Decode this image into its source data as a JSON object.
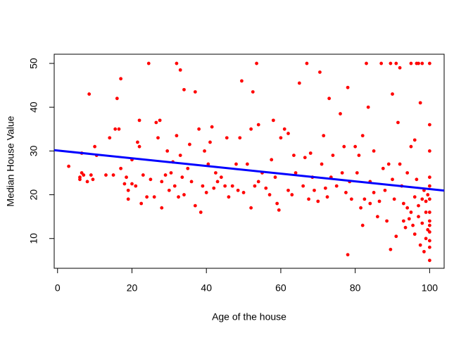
{
  "chart_data": {
    "type": "scatter",
    "xlabel": "Age of the house",
    "ylabel": "Median House Value",
    "x": [
      3,
      6,
      6,
      6.5,
      6.5,
      7,
      8,
      8.5,
      9,
      9.5,
      10,
      10.5,
      13,
      14,
      15,
      15.5,
      16,
      16.5,
      17,
      17,
      18,
      18.5,
      19,
      19,
      20,
      20,
      21,
      21.5,
      22,
      22,
      22.5,
      23,
      24,
      24.5,
      25,
      26,
      26.5,
      27,
      27.5,
      28,
      28,
      29,
      29.5,
      30,
      30.5,
      31,
      31.5,
      32,
      32,
      32.5,
      33,
      33,
      33.5,
      34,
      34,
      35,
      35.5,
      36,
      37,
      37,
      38,
      38.5,
      39,
      39.5,
      40,
      40.5,
      41,
      41.5,
      42,
      42.5,
      43,
      44,
      45,
      45.5,
      46,
      47,
      48,
      48.5,
      49,
      49.5,
      50,
      51,
      52,
      52,
      52.5,
      53,
      53.5,
      54,
      54,
      55,
      56,
      57,
      57.5,
      58,
      58.5,
      59,
      59.5,
      60,
      61,
      62,
      62,
      63,
      63.5,
      64,
      65,
      66,
      66.5,
      67,
      67.5,
      68,
      68.5,
      69,
      70,
      70.5,
      71,
      71.5,
      72,
      72.5,
      73,
      73.5,
      74,
      75,
      76,
      76.5,
      77,
      77.5,
      78,
      78,
      78.5,
      79,
      80,
      80.5,
      81,
      81.5,
      82,
      82,
      82.5,
      83,
      83.5,
      84,
      84,
      85,
      85,
      86,
      86.5,
      87,
      87.5,
      88,
      88.5,
      89,
      89.5,
      89.5,
      90,
      90,
      90.5,
      91,
      91,
      91.5,
      92,
      92,
      92.5,
      93,
      93,
      93.5,
      94,
      94,
      94.5,
      95,
      95,
      95,
      95.5,
      96,
      96,
      96,
      96.5,
      96.5,
      97,
      97,
      97,
      97.5,
      97.5,
      98,
      98,
      98,
      98.5,
      98.5,
      99,
      99,
      99,
      99.5,
      99.5,
      100,
      100,
      100,
      100,
      100,
      100,
      100,
      100,
      100,
      100,
      100,
      100,
      100
    ],
    "values": [
      26.5,
      24,
      23.5,
      25,
      29.5,
      24.5,
      23,
      43,
      24.5,
      23.5,
      31,
      29,
      24.5,
      33,
      24.5,
      35,
      42,
      35,
      26,
      46.5,
      22.5,
      24,
      21,
      19,
      28,
      22.5,
      22,
      32,
      31,
      37,
      18,
      24.5,
      19.5,
      50,
      23.5,
      19.5,
      36.5,
      33,
      37,
      17,
      23,
      24.5,
      30,
      21,
      25,
      27.5,
      22,
      50,
      33.5,
      19.5,
      48.5,
      29,
      24,
      44,
      20,
      26,
      31.5,
      23,
      43.5,
      17.5,
      35,
      16,
      22,
      30,
      20.5,
      27,
      32,
      35.5,
      21.5,
      25,
      23,
      24,
      22,
      33,
      19.5,
      22,
      27,
      21,
      33,
      46,
      20.5,
      27,
      35,
      17,
      43.5,
      22,
      50,
      36,
      23,
      25,
      21.5,
      20,
      28,
      37,
      24,
      18,
      16.5,
      33,
      35,
      34,
      21,
      20,
      29,
      25,
      45.5,
      22,
      28.5,
      50,
      19,
      29.5,
      24,
      21,
      18.5,
      48,
      27,
      33.5,
      21.5,
      19.5,
      42,
      24,
      29,
      22,
      38.5,
      25,
      31,
      20.5,
      44.5,
      6.3,
      23,
      19,
      31,
      25,
      29,
      17,
      33.5,
      13,
      19,
      50,
      40,
      23,
      18,
      20.5,
      30,
      15,
      18.5,
      50,
      26,
      21,
      14,
      27,
      50,
      7.5,
      43,
      23.5,
      19,
      50,
      10.5,
      36.5,
      49,
      27,
      22,
      14,
      18,
      12.5,
      17,
      25,
      14.5,
      50,
      31,
      16,
      13,
      32.5,
      19.5,
      11,
      50,
      23.5,
      15,
      50,
      17.5,
      41,
      8.5,
      19,
      13.5,
      50,
      7,
      21,
      16,
      10,
      18.5,
      20,
      12,
      50,
      36,
      30,
      24,
      22,
      19,
      16,
      14,
      13,
      11.5,
      9.5,
      8,
      5
    ],
    "color": "#ff0000",
    "fit_line": {
      "intercept": 30.1,
      "slope": -0.088,
      "color": "#0000ff"
    },
    "xlim": [
      -0.9,
      103.9
    ],
    "ylim": [
      3.2,
      52.1
    ],
    "xticks": [
      0,
      20,
      40,
      60,
      80,
      100
    ],
    "yticks": [
      10,
      20,
      30,
      40,
      50
    ]
  }
}
